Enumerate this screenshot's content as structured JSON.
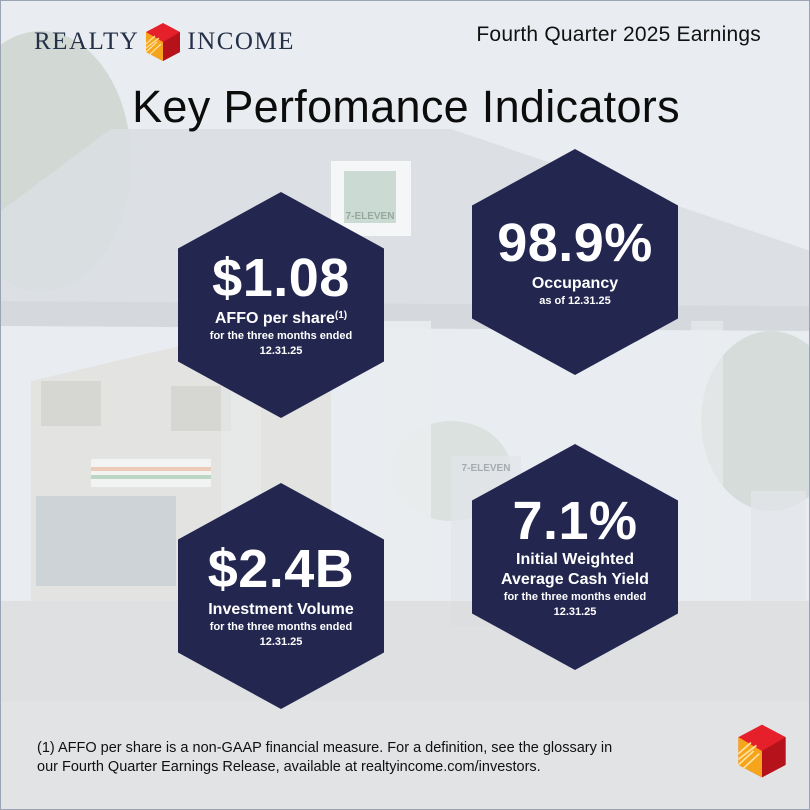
{
  "brand": {
    "logo_left_word": "REALTY",
    "logo_right_word": "INCOME",
    "logo_icon": "realty-income-cube-logo",
    "colors": {
      "navy": "#232750",
      "red": "#e6202b",
      "orange": "#f5a41c"
    }
  },
  "header": {
    "report_label": "Fourth Quarter 2025 Earnings",
    "title": "Key Perfomance Indicators"
  },
  "kpis": {
    "affo": {
      "value": "$1.08",
      "label": "AFFO per share",
      "footnote_marker": "(1)",
      "sub_line1": "for the three months ended",
      "sub_line2": "12.31.25"
    },
    "occupancy": {
      "value": "98.9%",
      "label": "Occupancy",
      "sub_line1": "as of 12.31.25"
    },
    "investment": {
      "value": "$2.4B",
      "label": "Investment Volume",
      "sub_line1": "for the three months ended",
      "sub_line2": "12.31.25"
    },
    "yield": {
      "value": "7.1%",
      "label_line1": "Initial Weighted",
      "label_line2": "Average Cash Yield",
      "sub_line1": "for the three months ended",
      "sub_line2": "12.31.25"
    }
  },
  "footer": {
    "footnote_line1": "(1) AFFO per share is a non-GAAP financial measure. For a definition, see the glossary in",
    "footnote_line2": "our Fourth Quarter Earnings Release, available at realtyincome.com/investors."
  },
  "background": {
    "signage_1": "7-ELEVEN",
    "signage_2": "7-ELEVEN"
  }
}
